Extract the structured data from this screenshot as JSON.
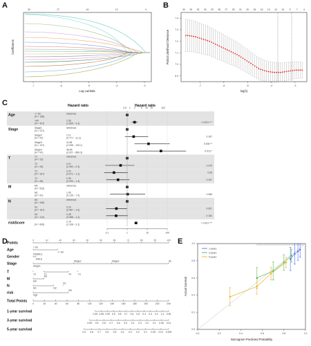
{
  "panels": {
    "a": {
      "letter": "A",
      "xlabel": "Log Lambda",
      "ylabel": "Coefficients",
      "top_ticks": [
        "30",
        "27",
        "16",
        "12",
        "4"
      ],
      "x_ticks": [
        "-7",
        "-6",
        "-5",
        "-4",
        "-3"
      ]
    },
    "b": {
      "letter": "B",
      "xlabel": "log(λ)",
      "ylabel": "Partial Likelihood Deviance",
      "top_ticks": [
        "30",
        "30",
        "30",
        "30",
        "29",
        "28",
        "27",
        "25",
        "21",
        "20",
        "18",
        "16",
        "13",
        "12",
        "10",
        "9",
        "7",
        "4"
      ],
      "x_ticks": [
        "-7",
        "-6",
        "-5",
        "-4",
        "-3"
      ],
      "y_ticks": [
        "6.9",
        "7.0",
        "7.1",
        "7.2",
        "7.3",
        "7.4"
      ]
    },
    "c": {
      "letter": "C",
      "title": "Hazard ratio",
      "axis_ticks": [
        "0.1",
        "1",
        "10",
        "100"
      ],
      "extra_ticks": [
        "0.5",
        "1",
        "2",
        "5",
        "10",
        "20",
        "100"
      ],
      "rows": [
        {
          "var": "Age",
          "sub": "<= 60",
          "n": "(N = 158)",
          "est": "reference",
          "p": ""
        },
        {
          "var": "",
          "sub": ">60",
          "n": "(N = 427)",
          "est": "2.35",
          "ci": "(1.665 – 3.3)",
          "p": "< 0.001 ***"
        },
        {
          "var": "Stage",
          "sub": "Stage1",
          "n": "(N = 317)",
          "est": "reference",
          "p": ""
        },
        {
          "var": "",
          "sub": "Stage2",
          "n": "(N = 57)",
          "est": "2.11",
          "ci": "(0.777 – 11.2)",
          "p": "0.187"
        },
        {
          "var": "",
          "sub": "Stage3",
          "n": "(N = 137)",
          "est": "11.58",
          "ci": "(2.308 – 133.1)",
          "p": "0.006 **"
        },
        {
          "var": "",
          "sub": "Stage4",
          "n": "(N = 87)",
          "est": "48.55",
          "ci": "(3.027 – 869.3)",
          "p": "0.013 *"
        },
        {
          "var": "T",
          "sub": "T1",
          "n": "(N = 23)",
          "est": "reference",
          "p": ""
        },
        {
          "var": "",
          "sub": "T2",
          "n": "(N = 94)",
          "est": "0.47",
          "ci": "(0.080 – 2.3)",
          "p": "0.376"
        },
        {
          "var": "",
          "sub": "T3",
          "n": "(N = 327)",
          "est": "0.22",
          "ci": "(0.071 – 1.1)",
          "p": "0.06"
        },
        {
          "var": "",
          "sub": "T4",
          "n": "(N = 69)",
          "est": "0.35",
          "ci": "(0.090 – 1.3)",
          "p": "0.167"
        },
        {
          "var": "M",
          "sub": "M0",
          "n": "(N = 522)",
          "est": "reference",
          "p": ""
        },
        {
          "var": "",
          "sub": "M1",
          "n": "(N = 87)",
          "est": "1.05",
          "ci": "(0.139 – 7.9)",
          "p": "0.966"
        },
        {
          "var": "N",
          "sub": "N0",
          "n": "(N = 349)",
          "est": "reference",
          "p": ""
        },
        {
          "var": "",
          "sub": "N1",
          "n": "(N = 167)",
          "est": "0.29",
          "ci": "(0.087 – 1.0)",
          "p": "0.057"
        },
        {
          "var": "",
          "sub": "N2",
          "n": "(N = 114)",
          "est": "0.28",
          "ci": "(0.088 – 1.1)",
          "p": "0.164"
        },
        {
          "var": "riskScore",
          "sub": "",
          "n": "(N = 609)",
          "est": "2.78",
          "ci": "(2.198 – 3.1)",
          "p": "< 0.001 ***"
        }
      ]
    },
    "d": {
      "letter": "D",
      "labels": [
        "Points",
        "Age",
        "Gender",
        "Stage",
        "T",
        "M",
        "N",
        "risk",
        "Total Points",
        "1-year survival",
        "3-year survival",
        "5-year survival"
      ],
      "points_ticks": [
        "0",
        "10",
        "20",
        "30",
        "40",
        "50",
        "60",
        "70",
        "80",
        "90",
        "100"
      ],
      "total_ticks": [
        "0",
        "20",
        "40",
        "60",
        "80",
        "100",
        "120",
        "140",
        "160",
        "180",
        "200",
        "220",
        "240"
      ],
      "age": [
        "< 60",
        ">= 60"
      ],
      "gender": [
        "FEMALE",
        "MALE"
      ],
      "stage": [
        "Stage1",
        "Stage2",
        "Stage3",
        "Stage4"
      ],
      "t": [
        "T1",
        "T2",
        "T3",
        "T4"
      ],
      "m": [
        "M0",
        "M1"
      ],
      "n": [
        "N0",
        "N1",
        "N2"
      ],
      "risk": [
        "high",
        "low"
      ],
      "surv1": "0.99 0.98 0.95 0.9 0.8 0.7 0.6 0.5 0.4 0.3 0.2 0.1 0.05",
      "surv3": "0.95 0.9 0.8 0.7 0.6 0.5 0.4 0.3 0.2 0.1 0.05 0.01",
      "surv5": "0.9 0.8 0.7 0.6 0.5 0.4 0.3 0.2 0.1 0.05 0.01 0.005"
    },
    "e": {
      "letter": "E",
      "xlabel": "Nomogram-Predicted Probability",
      "ylabel": "Actual Survival",
      "x_ticks": [
        "0.0",
        "0.2",
        "0.4",
        "0.6",
        "0.8",
        "1.0"
      ],
      "y_ticks": [
        "0.0",
        "0.2",
        "0.4",
        "0.6",
        "0.8",
        "1.0"
      ],
      "legend": [
        "1-years",
        "3-years",
        "5-years"
      ],
      "colors": [
        "#4c6cf0",
        "#55b84a",
        "#e8b02a"
      ]
    }
  },
  "chart_data": [
    {
      "type": "line",
      "panel": "A",
      "xlabel": "Log Lambda",
      "ylabel": "Coefficients",
      "xlim": [
        -7.8,
        -2.5
      ]
    },
    {
      "type": "scatter",
      "panel": "B",
      "xlabel": "log(λ)",
      "ylabel": "Partial Likelihood Deviance",
      "ylim": [
        6.85,
        7.45
      ],
      "x": [
        -7.5,
        -7.2,
        -6.9,
        -6.6,
        -6.3,
        -6.0,
        -5.7,
        -5.4,
        -5.1,
        -4.8,
        -4.5,
        -4.2,
        -3.9,
        -3.6,
        -3.3,
        -3.0
      ],
      "y": [
        7.25,
        7.24,
        7.22,
        7.2,
        7.17,
        7.14,
        7.11,
        7.08,
        7.04,
        7.0,
        6.96,
        6.94,
        6.93,
        6.93,
        6.94,
        6.95
      ]
    },
    {
      "type": "scatter",
      "panel": "E",
      "xlabel": "Nomogram-Predicted Probability",
      "ylabel": "Actual Survival",
      "xlim": [
        0,
        1
      ],
      "ylim": [
        0,
        1
      ],
      "series": [
        {
          "name": "1-years",
          "x": [
            0.86,
            0.9,
            0.93,
            0.95
          ],
          "y": [
            0.82,
            0.88,
            0.91,
            0.93
          ]
        },
        {
          "name": "3-years",
          "x": [
            0.55,
            0.7,
            0.8,
            0.87
          ],
          "y": [
            0.6,
            0.68,
            0.78,
            0.86
          ]
        },
        {
          "name": "5-years",
          "x": [
            0.3,
            0.55,
            0.68,
            0.82
          ],
          "y": [
            0.38,
            0.5,
            0.65,
            0.78
          ]
        }
      ]
    }
  ]
}
